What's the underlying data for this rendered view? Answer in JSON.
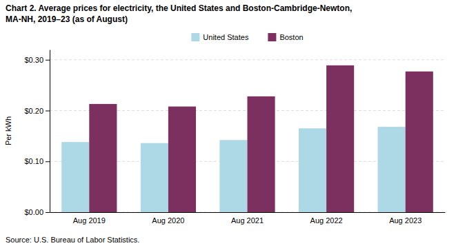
{
  "chart_data": {
    "type": "bar",
    "title": "Chart 2. Average prices for electricity, the United States and Boston-Cambridge-Newton,",
    "subtitle": "MA-NH, 2019–23 (as of August)",
    "y_label": "Per kWh",
    "source": "Source: U.S. Bureau of Labor Statistics.",
    "categories": [
      "Aug 2019",
      "Aug 2020",
      "Aug 2021",
      "Aug 2022",
      "Aug 2023"
    ],
    "series": [
      {
        "name": "United States",
        "color": "#ADD8E6",
        "values": [
          0.138,
          0.136,
          0.142,
          0.165,
          0.168
        ]
      },
      {
        "name": "Boston",
        "color": "#7B3060",
        "values": [
          0.213,
          0.208,
          0.228,
          0.289,
          0.277
        ]
      }
    ],
    "ylim": [
      0,
      0.32
    ],
    "yticks": [
      {
        "value": 0.0,
        "label": "$0.00"
      },
      {
        "value": 0.1,
        "label": "$0.10"
      },
      {
        "value": 0.2,
        "label": "$0.20"
      },
      {
        "value": 0.3,
        "label": "$0.30"
      }
    ],
    "grid": true,
    "legend": "top"
  }
}
